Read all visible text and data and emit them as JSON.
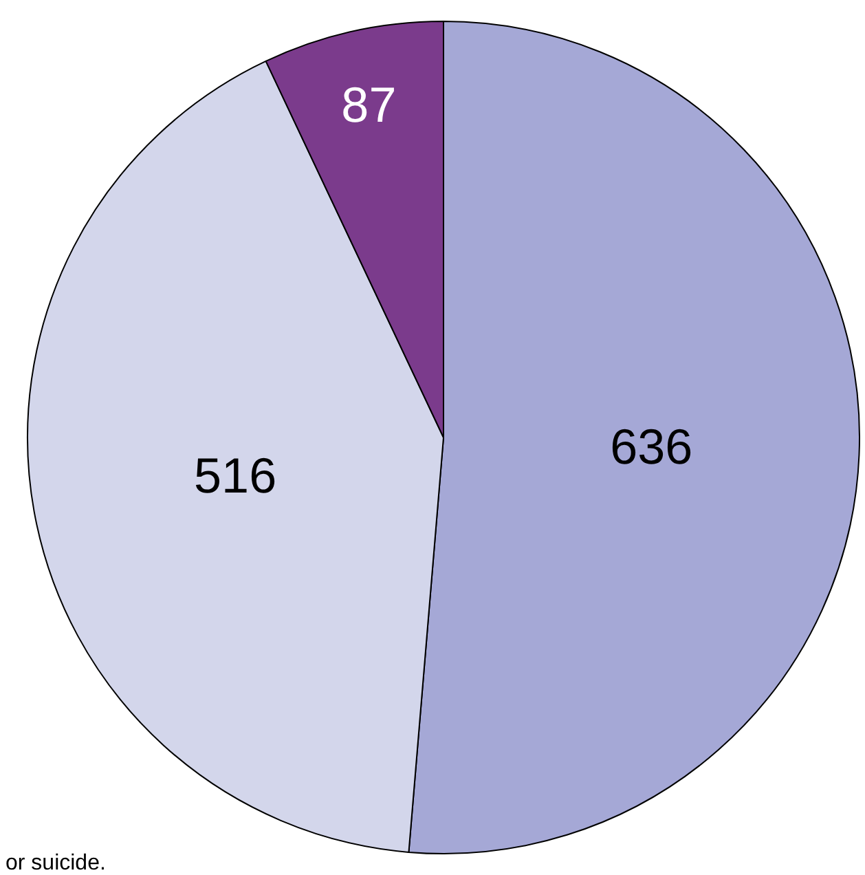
{
  "chart_data": {
    "type": "pie",
    "categories": [
      null,
      null,
      null
    ],
    "values": [
      636,
      516,
      87
    ],
    "colors": [
      "#a5a8d6",
      "#d3d6eb",
      "#7b3b8c"
    ],
    "data_labels": true,
    "legend": false,
    "annotations": [
      "or suicide."
    ]
  }
}
